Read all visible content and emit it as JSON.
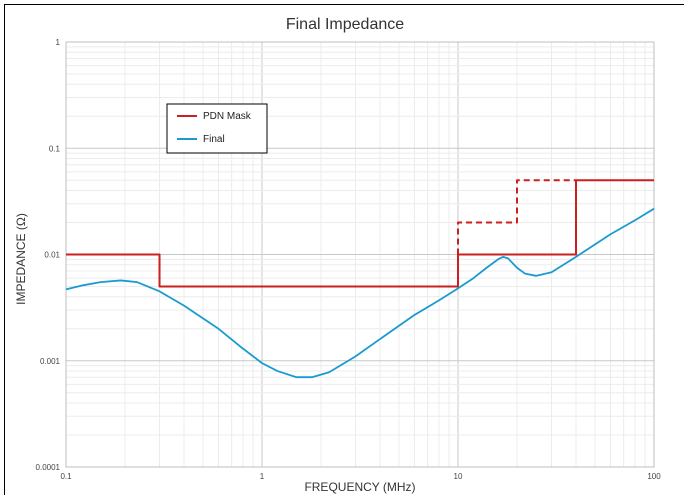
{
  "chart_data": {
    "type": "line",
    "title": "Final Impedance",
    "xlabel": "FREQUENCY (MHz)",
    "ylabel": "IMPEDANCE (Ω)",
    "x_scale": "log",
    "y_scale": "log",
    "xlim": [
      0.1,
      100
    ],
    "ylim": [
      0.0001,
      1
    ],
    "x_ticks": [
      {
        "value": 0.1,
        "label": "0.1"
      },
      {
        "value": 1,
        "label": "1"
      },
      {
        "value": 10,
        "label": "10"
      },
      {
        "value": 100,
        "label": "100"
      }
    ],
    "y_ticks": [
      {
        "value": 1,
        "label": "1"
      },
      {
        "value": 0.1,
        "label": "0.1"
      },
      {
        "value": 0.01,
        "label": "0.01"
      },
      {
        "value": 0.001,
        "label": "0.001"
      },
      {
        "value": 0.0001,
        "label": "0.0001"
      }
    ],
    "grid": true,
    "legend_position": "top-left",
    "series": [
      {
        "name": "PDN Mask",
        "color": "#cc1f1f",
        "style": "solid",
        "x": [
          0.1,
          0.3,
          0.3,
          10,
          10,
          40,
          40,
          100
        ],
        "y": [
          0.01,
          0.01,
          0.005,
          0.005,
          0.01,
          0.01,
          0.05,
          0.05
        ]
      },
      {
        "name": "",
        "color": "#cc1f1f",
        "style": "dashed",
        "x": [
          10,
          10,
          20,
          20,
          40
        ],
        "y": [
          0.01,
          0.02,
          0.02,
          0.05,
          0.05
        ]
      },
      {
        "name": "Final",
        "color": "#1a9bd0",
        "style": "solid",
        "x": [
          0.1,
          0.12,
          0.15,
          0.19,
          0.23,
          0.3,
          0.4,
          0.6,
          0.8,
          1.0,
          1.2,
          1.5,
          1.8,
          2.2,
          3.0,
          4.0,
          6.0,
          8.0,
          10,
          12,
          14,
          16,
          17,
          18,
          20,
          22,
          25,
          30,
          40,
          60,
          80,
          100
        ],
        "y": [
          0.0047,
          0.0051,
          0.0055,
          0.0057,
          0.0055,
          0.0045,
          0.0033,
          0.002,
          0.0013,
          0.00095,
          0.0008,
          0.0007,
          0.0007,
          0.00078,
          0.0011,
          0.0016,
          0.0027,
          0.0037,
          0.0048,
          0.006,
          0.0075,
          0.009,
          0.0095,
          0.0092,
          0.0075,
          0.0066,
          0.0063,
          0.0068,
          0.0095,
          0.0155,
          0.021,
          0.027
        ]
      }
    ]
  }
}
